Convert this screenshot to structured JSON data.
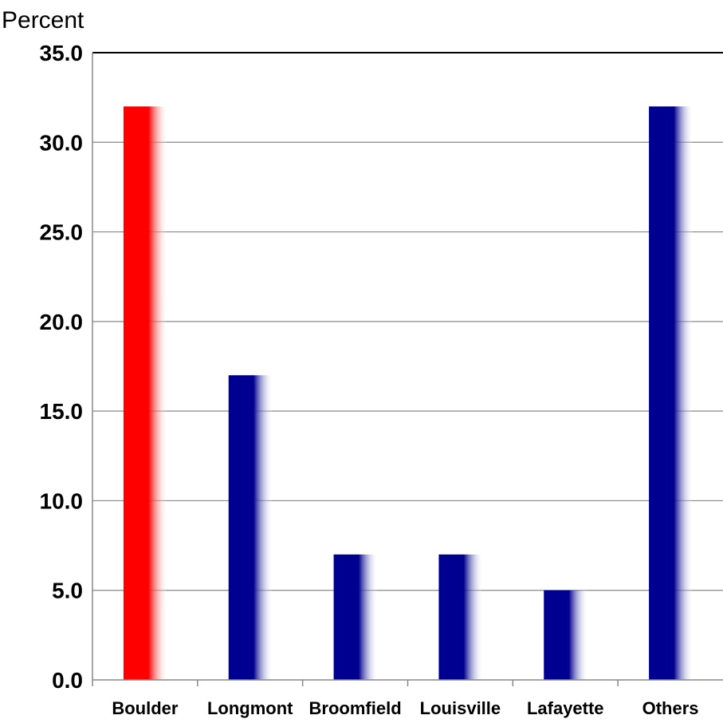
{
  "chart_data": {
    "type": "bar",
    "title": "",
    "xlabel": "",
    "ylabel": "Percent",
    "categories": [
      "Boulder",
      "Longmont",
      "Broomfield",
      "Louisville",
      "Lafayette",
      "Others"
    ],
    "values": [
      32,
      17,
      7,
      7,
      5,
      32
    ],
    "ylim": [
      0,
      35
    ],
    "yticks": [
      "0.0",
      "5.0",
      "10.0",
      "15.0",
      "20.0",
      "25.0",
      "30.0",
      "35.0"
    ],
    "grid": true,
    "legend": "none",
    "colors": {
      "highlight": "#ff0000",
      "default": "#000090",
      "gridline": "#888888",
      "axis": "#000000"
    },
    "highlight_category": "Boulder"
  }
}
